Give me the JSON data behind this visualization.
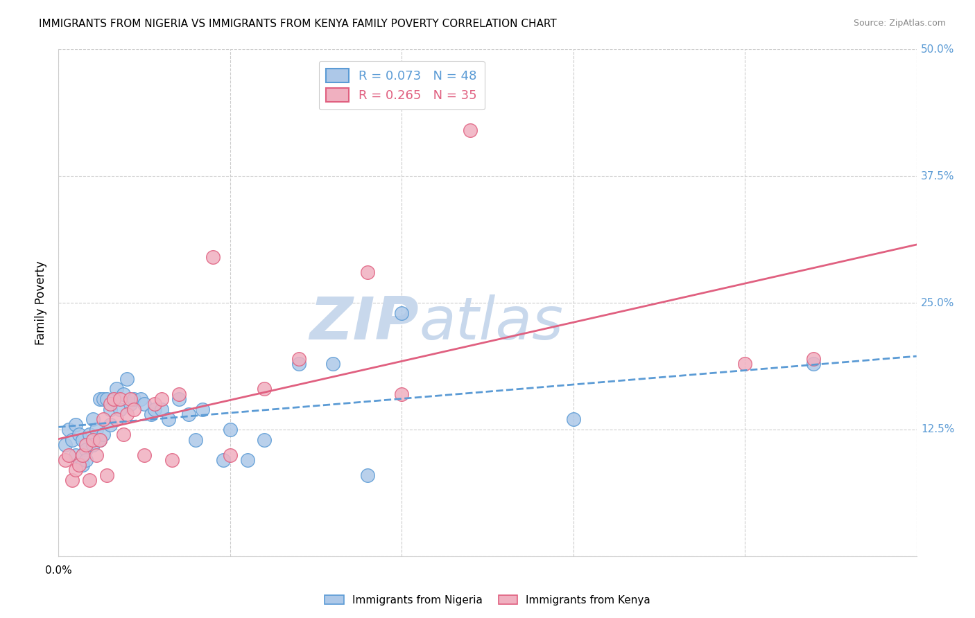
{
  "title": "IMMIGRANTS FROM NIGERIA VS IMMIGRANTS FROM KENYA FAMILY POVERTY CORRELATION CHART",
  "source": "Source: ZipAtlas.com",
  "ylabel": "Family Poverty",
  "xlim": [
    0.0,
    0.25
  ],
  "ylim": [
    0.0,
    0.5
  ],
  "xticks": [
    0.0,
    0.05,
    0.1,
    0.15,
    0.2,
    0.25
  ],
  "yticks": [
    0.0,
    0.125,
    0.25,
    0.375,
    0.5
  ],
  "ytick_labels_right": [
    "",
    "12.5%",
    "25.0%",
    "37.5%",
    "50.0%"
  ],
  "nigeria_color": "#adc8e8",
  "kenya_color": "#f0b0c0",
  "nigeria_edge_color": "#5b9bd5",
  "kenya_edge_color": "#e06080",
  "nigeria_line_color": "#5b9bd5",
  "kenya_line_color": "#e06080",
  "nigeria_R": 0.073,
  "nigeria_N": 48,
  "kenya_R": 0.265,
  "kenya_N": 35,
  "nigeria_scatter_x": [
    0.002,
    0.003,
    0.004,
    0.005,
    0.005,
    0.006,
    0.007,
    0.007,
    0.008,
    0.008,
    0.009,
    0.01,
    0.01,
    0.011,
    0.012,
    0.012,
    0.013,
    0.013,
    0.014,
    0.015,
    0.015,
    0.016,
    0.017,
    0.018,
    0.019,
    0.02,
    0.021,
    0.022,
    0.024,
    0.025,
    0.027,
    0.028,
    0.03,
    0.032,
    0.035,
    0.038,
    0.04,
    0.042,
    0.048,
    0.05,
    0.055,
    0.06,
    0.07,
    0.08,
    0.09,
    0.1,
    0.15,
    0.22
  ],
  "nigeria_scatter_y": [
    0.11,
    0.125,
    0.115,
    0.1,
    0.13,
    0.12,
    0.115,
    0.09,
    0.105,
    0.095,
    0.12,
    0.135,
    0.11,
    0.125,
    0.115,
    0.155,
    0.12,
    0.155,
    0.155,
    0.145,
    0.13,
    0.155,
    0.165,
    0.145,
    0.16,
    0.175,
    0.15,
    0.155,
    0.155,
    0.15,
    0.14,
    0.145,
    0.145,
    0.135,
    0.155,
    0.14,
    0.115,
    0.145,
    0.095,
    0.125,
    0.095,
    0.115,
    0.19,
    0.19,
    0.08,
    0.24,
    0.135,
    0.19
  ],
  "kenya_scatter_x": [
    0.002,
    0.003,
    0.004,
    0.005,
    0.006,
    0.007,
    0.008,
    0.009,
    0.01,
    0.011,
    0.012,
    0.013,
    0.014,
    0.015,
    0.016,
    0.017,
    0.018,
    0.019,
    0.02,
    0.021,
    0.022,
    0.025,
    0.028,
    0.03,
    0.033,
    0.035,
    0.045,
    0.05,
    0.06,
    0.07,
    0.09,
    0.1,
    0.12,
    0.2,
    0.22
  ],
  "kenya_scatter_y": [
    0.095,
    0.1,
    0.075,
    0.085,
    0.09,
    0.1,
    0.11,
    0.075,
    0.115,
    0.1,
    0.115,
    0.135,
    0.08,
    0.15,
    0.155,
    0.135,
    0.155,
    0.12,
    0.14,
    0.155,
    0.145,
    0.1,
    0.15,
    0.155,
    0.095,
    0.16,
    0.295,
    0.1,
    0.165,
    0.195,
    0.28,
    0.16,
    0.42,
    0.19,
    0.195
  ],
  "legend_label_nigeria": "R = 0.073   N = 48",
  "legend_label_kenya": "R = 0.265   N = 35",
  "bottom_legend_nigeria": "Immigrants from Nigeria",
  "bottom_legend_kenya": "Immigrants from Kenya",
  "watermark_zip": "ZIP",
  "watermark_atlas": "atlas",
  "watermark_color_zip": "#c8d8ec",
  "watermark_color_atlas": "#c8d8ec",
  "title_fontsize": 11,
  "axis_label_color": "#5b9bd5",
  "grid_color": "#cccccc",
  "right_label_color": "#5b9bd5"
}
